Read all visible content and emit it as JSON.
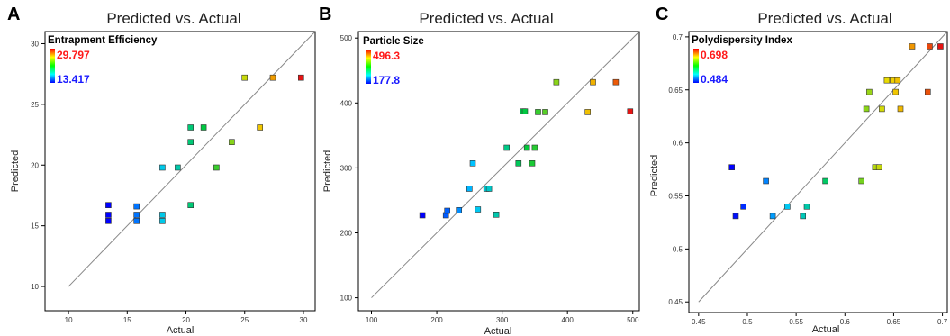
{
  "chart_data": [
    {
      "type": "scatter",
      "panel": "A",
      "title": "Predicted vs. Actual",
      "xlabel": "Actual",
      "ylabel": "Predicted",
      "xlim": [
        8,
        31
      ],
      "ylim": [
        8,
        31
      ],
      "xticks": [
        10,
        15,
        20,
        25,
        30
      ],
      "yticks": [
        10,
        15,
        20,
        25,
        30
      ],
      "legend": {
        "title": "Entrapment Efficiency",
        "max": "29.797",
        "min": "13.417",
        "min_value": 13.417,
        "max_value": 29.797
      },
      "points": [
        {
          "x": 13.4,
          "y": 15.4
        },
        {
          "x": 13.4,
          "y": 15.9
        },
        {
          "x": 13.4,
          "y": 16.7
        },
        {
          "x": 15.8,
          "y": 15.4
        },
        {
          "x": 15.8,
          "y": 15.9
        },
        {
          "x": 15.8,
          "y": 16.6
        },
        {
          "x": 18.0,
          "y": 15.4
        },
        {
          "x": 18.0,
          "y": 15.9
        },
        {
          "x": 18.0,
          "y": 19.8
        },
        {
          "x": 19.3,
          "y": 19.8
        },
        {
          "x": 20.4,
          "y": 16.7
        },
        {
          "x": 20.4,
          "y": 21.9
        },
        {
          "x": 20.4,
          "y": 23.1
        },
        {
          "x": 21.5,
          "y": 23.1
        },
        {
          "x": 22.6,
          "y": 19.8
        },
        {
          "x": 23.9,
          "y": 21.9
        },
        {
          "x": 25.0,
          "y": 27.2
        },
        {
          "x": 26.3,
          "y": 23.1
        },
        {
          "x": 27.4,
          "y": 27.2
        },
        {
          "x": 29.8,
          "y": 27.2
        }
      ]
    },
    {
      "type": "scatter",
      "panel": "B",
      "title": "Predicted vs. Actual",
      "xlabel": "Actual",
      "ylabel": "Predicted",
      "xlim": [
        80,
        510
      ],
      "ylim": [
        80,
        510
      ],
      "xticks": [
        100,
        200,
        300,
        400,
        500
      ],
      "yticks": [
        100,
        200,
        300,
        400,
        500
      ],
      "legend": {
        "title": "Particle Size",
        "max": "496.3",
        "min": "177.8",
        "min_value": 177.8,
        "max_value": 496.3
      },
      "points": [
        {
          "x": 178,
          "y": 227
        },
        {
          "x": 214,
          "y": 227
        },
        {
          "x": 216,
          "y": 234
        },
        {
          "x": 234,
          "y": 235
        },
        {
          "x": 250,
          "y": 268
        },
        {
          "x": 255,
          "y": 307
        },
        {
          "x": 263,
          "y": 236
        },
        {
          "x": 276,
          "y": 268
        },
        {
          "x": 280,
          "y": 268
        },
        {
          "x": 291,
          "y": 228
        },
        {
          "x": 307,
          "y": 331
        },
        {
          "x": 325,
          "y": 307
        },
        {
          "x": 332,
          "y": 387
        },
        {
          "x": 335,
          "y": 387
        },
        {
          "x": 338,
          "y": 331
        },
        {
          "x": 346,
          "y": 307
        },
        {
          "x": 350,
          "y": 331
        },
        {
          "x": 355,
          "y": 386
        },
        {
          "x": 366,
          "y": 386
        },
        {
          "x": 383,
          "y": 432
        },
        {
          "x": 431,
          "y": 386
        },
        {
          "x": 439,
          "y": 432
        },
        {
          "x": 474,
          "y": 432
        },
        {
          "x": 496,
          "y": 387
        }
      ]
    },
    {
      "type": "scatter",
      "panel": "C",
      "title": "Predicted vs. Actual",
      "xlabel": "Actual",
      "ylabel": "Predicted",
      "xlim": [
        0.44,
        0.705
      ],
      "ylim": [
        0.44,
        0.705
      ],
      "xticks": [
        0.45,
        0.5,
        0.55,
        0.6,
        0.65,
        0.7
      ],
      "xticklabels": [
        "0.45",
        "0.5",
        "0.55",
        "0.6",
        "0.65",
        "0.7"
      ],
      "yticks": [
        0.45,
        0.5,
        0.55,
        0.6,
        0.65,
        0.7
      ],
      "yticklabels": [
        "0.45",
        "0.5",
        "0.55",
        "0.6",
        "0.65",
        "0.7"
      ],
      "legend": {
        "title": "Polydispersity Index",
        "max": "0.698",
        "min": "0.484",
        "min_value": 0.484,
        "max_value": 0.698
      },
      "points": [
        {
          "x": 0.484,
          "y": 0.577
        },
        {
          "x": 0.488,
          "y": 0.531
        },
        {
          "x": 0.496,
          "y": 0.54
        },
        {
          "x": 0.519,
          "y": 0.564
        },
        {
          "x": 0.526,
          "y": 0.531
        },
        {
          "x": 0.541,
          "y": 0.54
        },
        {
          "x": 0.557,
          "y": 0.531
        },
        {
          "x": 0.561,
          "y": 0.54
        },
        {
          "x": 0.58,
          "y": 0.564
        },
        {
          "x": 0.617,
          "y": 0.564
        },
        {
          "x": 0.622,
          "y": 0.632
        },
        {
          "x": 0.625,
          "y": 0.648
        },
        {
          "x": 0.631,
          "y": 0.577
        },
        {
          "x": 0.635,
          "y": 0.577
        },
        {
          "x": 0.638,
          "y": 0.632
        },
        {
          "x": 0.643,
          "y": 0.659
        },
        {
          "x": 0.649,
          "y": 0.659
        },
        {
          "x": 0.652,
          "y": 0.648
        },
        {
          "x": 0.654,
          "y": 0.659
        },
        {
          "x": 0.657,
          "y": 0.632
        },
        {
          "x": 0.669,
          "y": 0.691
        },
        {
          "x": 0.685,
          "y": 0.648
        },
        {
          "x": 0.687,
          "y": 0.691
        },
        {
          "x": 0.698,
          "y": 0.691
        }
      ]
    }
  ]
}
